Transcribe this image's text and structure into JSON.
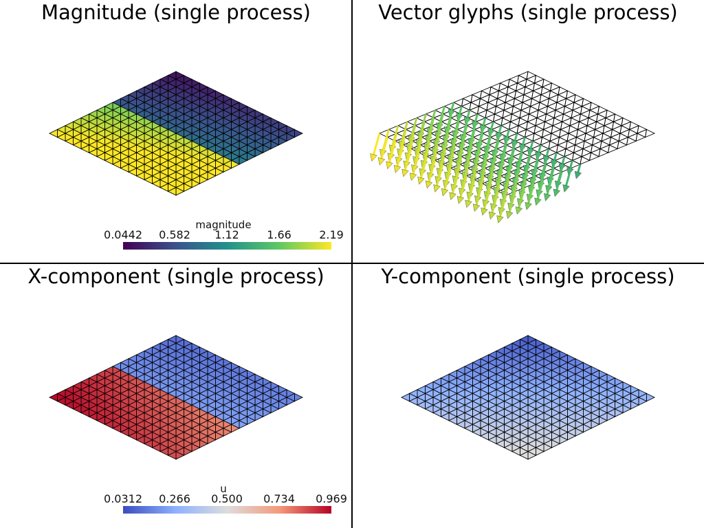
{
  "panels": [
    {
      "title": "Magnitude (single process)",
      "colormap": "viridis",
      "colorbar": {
        "title": "magnitude",
        "ticks": [
          "0.0442",
          "0.582",
          "1.12",
          "1.66",
          "2.19"
        ]
      }
    },
    {
      "title": "Vector glyphs (single process)",
      "colormap": "viridis"
    },
    {
      "title": "X-component (single process)",
      "colormap": "coolwarm",
      "colorbar": {
        "title": "u",
        "ticks": [
          "0.0312",
          "0.266",
          "0.500",
          "0.734",
          "0.969"
        ]
      }
    },
    {
      "title": "Y-component (single process)",
      "colormap": "coolwarm"
    }
  ],
  "colors": {
    "viridis": [
      "#440154",
      "#3b528b",
      "#21918c",
      "#5ec962",
      "#fde725"
    ],
    "coolwarm": [
      "#3b4cc0",
      "#8db0fe",
      "#dddddd",
      "#f49a7b",
      "#b40426"
    ],
    "mesh_line": "#000000",
    "divider": "#000000"
  }
}
